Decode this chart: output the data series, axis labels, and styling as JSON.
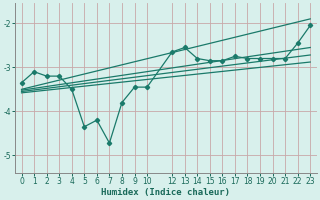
{
  "xlabel": "Humidex (Indice chaleur)",
  "bg_color": "#d8f0ec",
  "grid_color": "#c8a8a8",
  "line_color": "#1a7a6a",
  "tick_color": "#1a6a5a",
  "xlim": [
    -0.5,
    23.5
  ],
  "ylim": [
    -5.4,
    -1.55
  ],
  "yticks": [
    -5,
    -4,
    -3,
    -2
  ],
  "xticks": [
    0,
    1,
    2,
    3,
    4,
    5,
    6,
    7,
    8,
    9,
    10,
    12,
    13,
    14,
    15,
    16,
    17,
    18,
    19,
    20,
    21,
    22,
    23
  ],
  "series_main_x": [
    0,
    1,
    2,
    3,
    4,
    5,
    6,
    7,
    8,
    9,
    10,
    12,
    13,
    14,
    15,
    16,
    17,
    18,
    19,
    20,
    21,
    22,
    23
  ],
  "series_main_y": [
    -3.35,
    -3.1,
    -3.2,
    -3.2,
    -3.5,
    -4.35,
    -4.2,
    -4.72,
    -3.8,
    -3.45,
    -3.45,
    -2.65,
    -2.55,
    -2.8,
    -2.85,
    -2.85,
    -2.75,
    -2.8,
    -2.8,
    -2.8,
    -2.8,
    -2.45,
    -2.05
  ],
  "line1_x": [
    0,
    23
  ],
  "line1_y": [
    -3.5,
    -1.9
  ],
  "line2_x": [
    0,
    23
  ],
  "line2_y": [
    -3.52,
    -2.55
  ],
  "line3_x": [
    0,
    23
  ],
  "line3_y": [
    -3.55,
    -2.72
  ],
  "line4_x": [
    0,
    23
  ],
  "line4_y": [
    -3.58,
    -2.88
  ]
}
